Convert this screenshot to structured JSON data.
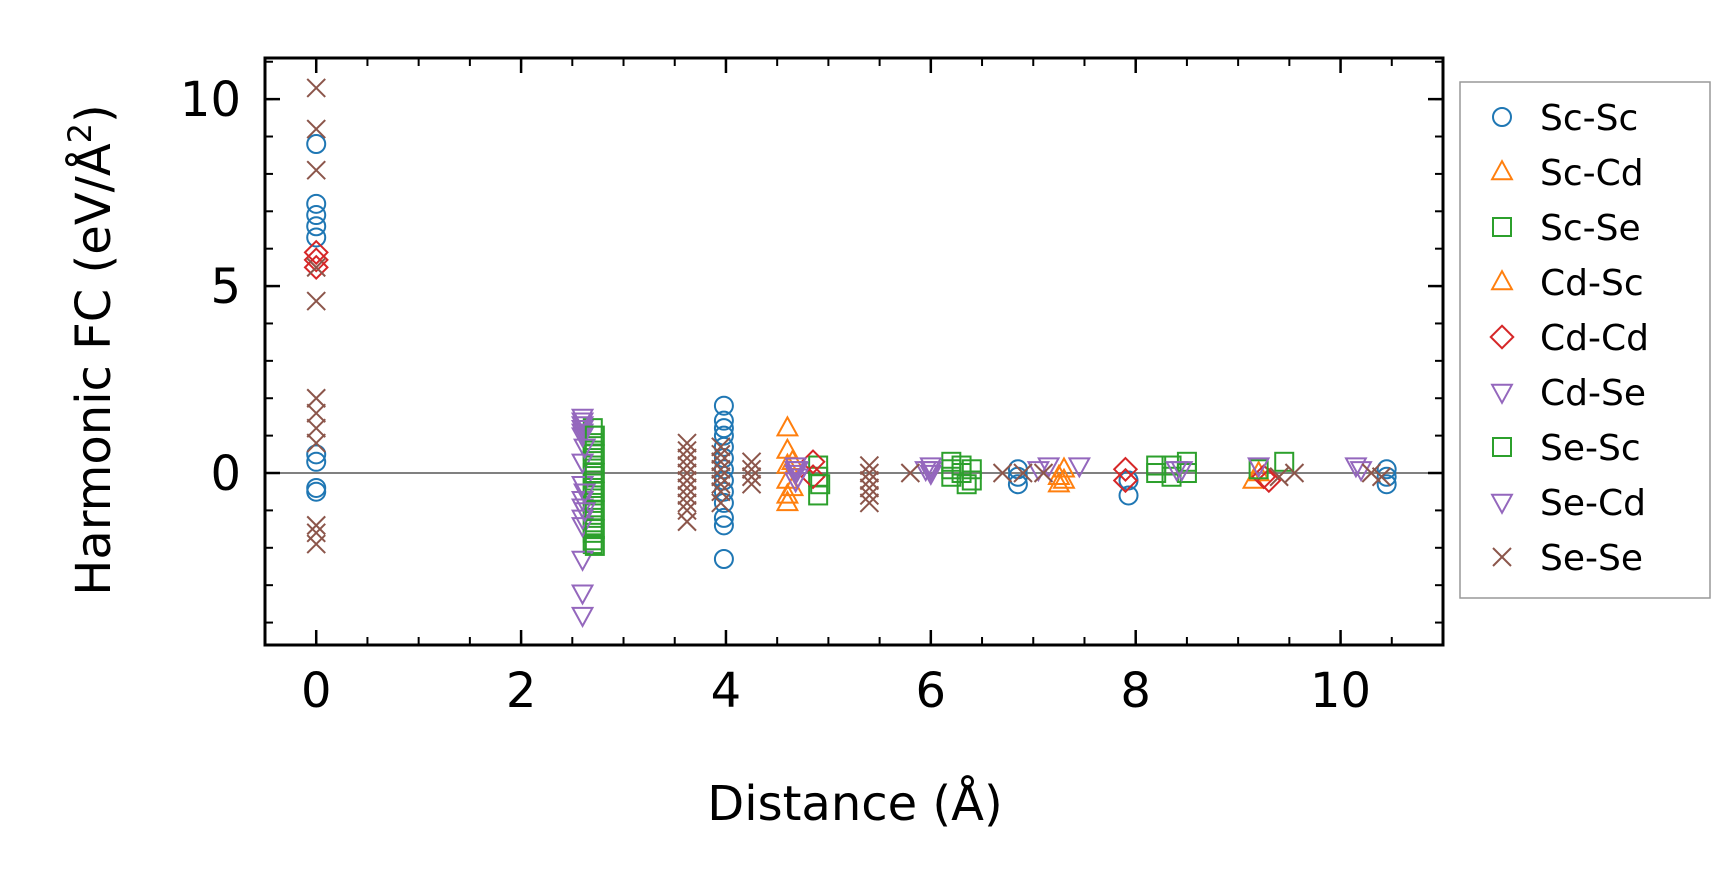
{
  "chart_data": {
    "type": "scatter",
    "xlabel": "Distance (Å)",
    "ylabel_main": "Harmonic FC (eV/Å",
    "ylabel_sup": "2",
    "ylabel_close": ")",
    "xlim": [
      -0.5,
      11.0
    ],
    "ylim": [
      -4.6,
      11.1
    ],
    "xticks": [
      0,
      2,
      4,
      6,
      8,
      10
    ],
    "yticks": [
      0,
      5,
      10
    ],
    "xtick_labels": [
      "0",
      "2",
      "4",
      "6",
      "8",
      "10"
    ],
    "ytick_labels": [
      "0",
      "5",
      "10"
    ],
    "x_minor_step": 0.5,
    "y_minor_step": 1,
    "zero_line": true,
    "grid": false,
    "legend_position": "outside-right",
    "series": [
      {
        "name": "Sc-Sc",
        "marker": "circle",
        "color": "#1f77b4",
        "points": [
          [
            0,
            8.8
          ],
          [
            0,
            7.2
          ],
          [
            0,
            6.9
          ],
          [
            0,
            6.6
          ],
          [
            0,
            6.3
          ],
          [
            0,
            0.5
          ],
          [
            0,
            0.3
          ],
          [
            0,
            -0.4
          ],
          [
            0,
            -0.5
          ],
          [
            3.98,
            1.8
          ],
          [
            3.98,
            1.4
          ],
          [
            3.98,
            1.2
          ],
          [
            3.98,
            1.0
          ],
          [
            3.98,
            0.7
          ],
          [
            3.98,
            0.4
          ],
          [
            3.98,
            0.1
          ],
          [
            3.98,
            -0.2
          ],
          [
            3.98,
            -0.5
          ],
          [
            3.98,
            -0.8
          ],
          [
            3.98,
            -1.2
          ],
          [
            3.98,
            -1.4
          ],
          [
            3.98,
            -2.3
          ],
          [
            6.85,
            0.1
          ],
          [
            6.85,
            -0.1
          ],
          [
            6.85,
            -0.3
          ],
          [
            7.93,
            -0.6
          ],
          [
            7.93,
            -0.2
          ],
          [
            10.45,
            0.1
          ],
          [
            10.45,
            -0.1
          ],
          [
            10.45,
            -0.3
          ]
        ]
      },
      {
        "name": "Sc-Cd",
        "marker": "triangle-up",
        "color": "#ff7f0e",
        "points": [
          [
            4.6,
            1.2
          ],
          [
            4.6,
            0.6
          ],
          [
            4.6,
            0.2
          ],
          [
            4.6,
            -0.2
          ],
          [
            4.6,
            -0.6
          ],
          [
            4.6,
            -0.8
          ],
          [
            7.25,
            -0.1
          ],
          [
            7.25,
            -0.3
          ],
          [
            9.15,
            -0.2
          ]
        ]
      },
      {
        "name": "Sc-Se",
        "marker": "square",
        "color": "#2ca02c",
        "points": [
          [
            2.7,
            1.2
          ],
          [
            2.7,
            1.0
          ],
          [
            2.7,
            0.8
          ],
          [
            2.7,
            0.6
          ],
          [
            2.7,
            0.4
          ],
          [
            2.7,
            0.2
          ],
          [
            2.7,
            0.0
          ],
          [
            2.7,
            -0.2
          ],
          [
            2.7,
            -0.4
          ],
          [
            2.7,
            -0.6
          ],
          [
            2.7,
            -0.8
          ],
          [
            2.7,
            -1.0
          ],
          [
            2.7,
            -1.2
          ],
          [
            2.7,
            -1.4
          ],
          [
            2.7,
            -1.6
          ],
          [
            2.7,
            -1.8
          ],
          [
            2.7,
            -1.9
          ],
          [
            4.9,
            0.2
          ],
          [
            4.9,
            -0.1
          ],
          [
            4.9,
            -0.6
          ],
          [
            6.2,
            0.3
          ],
          [
            6.2,
            0.1
          ],
          [
            6.2,
            -0.1
          ],
          [
            6.3,
            0.2
          ],
          [
            6.3,
            0.0
          ],
          [
            6.4,
            0.1
          ],
          [
            6.4,
            -0.2
          ],
          [
            8.2,
            0.2
          ],
          [
            8.2,
            0.0
          ],
          [
            8.35,
            0.2
          ],
          [
            8.35,
            -0.1
          ],
          [
            8.5,
            0.3
          ],
          [
            8.5,
            0.0
          ],
          [
            9.45,
            0.3
          ]
        ]
      },
      {
        "name": "Cd-Sc",
        "marker": "triangle-up",
        "color": "#ff7f0e",
        "points": [
          [
            4.65,
            0.3
          ],
          [
            4.65,
            -0.4
          ],
          [
            7.3,
            0.1
          ],
          [
            7.3,
            -0.2
          ],
          [
            9.2,
            0.0
          ]
        ]
      },
      {
        "name": "Cd-Cd",
        "marker": "diamond",
        "color": "#d62728",
        "points": [
          [
            0,
            5.9
          ],
          [
            0,
            5.7
          ],
          [
            0,
            5.5
          ],
          [
            4.85,
            0.3
          ],
          [
            4.85,
            -0.1
          ],
          [
            7.9,
            0.1
          ],
          [
            7.9,
            -0.2
          ],
          [
            9.25,
            -0.1
          ],
          [
            9.3,
            -0.2
          ]
        ]
      },
      {
        "name": "Cd-Se",
        "marker": "triangle-down",
        "color": "#9467bd",
        "points": [
          [
            2.6,
            1.5
          ],
          [
            2.6,
            1.4
          ],
          [
            2.6,
            1.3
          ],
          [
            2.6,
            1.2
          ],
          [
            2.6,
            1.1
          ],
          [
            2.6,
            1.0
          ],
          [
            2.6,
            0.3
          ],
          [
            2.6,
            -0.3
          ],
          [
            2.6,
            -0.7
          ],
          [
            2.6,
            -0.9
          ],
          [
            2.6,
            -1.2
          ],
          [
            2.6,
            -1.4
          ],
          [
            2.6,
            -2.3
          ],
          [
            2.6,
            -3.2
          ],
          [
            2.6,
            -3.8
          ],
          [
            4.68,
            0.2
          ],
          [
            4.68,
            0.1
          ],
          [
            4.68,
            0.0
          ],
          [
            4.68,
            -0.2
          ],
          [
            6.0,
            0.2
          ],
          [
            6.0,
            0.1
          ],
          [
            6.0,
            0.0
          ],
          [
            7.15,
            0.2
          ],
          [
            7.45,
            0.2
          ],
          [
            8.4,
            0.1
          ],
          [
            10.15,
            0.2
          ]
        ]
      },
      {
        "name": "Se-Sc",
        "marker": "square",
        "color": "#2ca02c",
        "points": [
          [
            2.72,
            1.0
          ],
          [
            2.72,
            0.5
          ],
          [
            2.72,
            0.0
          ],
          [
            2.72,
            -0.5
          ],
          [
            2.72,
            -1.0
          ],
          [
            2.72,
            -1.5
          ],
          [
            2.72,
            -1.95
          ],
          [
            4.92,
            -0.3
          ],
          [
            6.35,
            -0.3
          ],
          [
            9.2,
            0.1
          ]
        ]
      },
      {
        "name": "Se-Cd",
        "marker": "triangle-down",
        "color": "#9467bd",
        "points": [
          [
            2.62,
            0.7
          ],
          [
            2.62,
            -0.5
          ],
          [
            2.62,
            -1.0
          ],
          [
            4.7,
            0.1
          ],
          [
            4.7,
            -0.1
          ],
          [
            5.95,
            0.1
          ],
          [
            7.05,
            0.1
          ],
          [
            8.45,
            0.1
          ],
          [
            9.2,
            0.2
          ],
          [
            10.2,
            0.1
          ]
        ]
      },
      {
        "name": "Se-Se",
        "marker": "x",
        "color": "#8c564b",
        "points": [
          [
            0,
            10.3
          ],
          [
            0,
            9.2
          ],
          [
            0,
            8.1
          ],
          [
            0,
            5.5
          ],
          [
            0,
            4.6
          ],
          [
            0,
            2.0
          ],
          [
            0,
            1.6
          ],
          [
            0,
            1.2
          ],
          [
            0,
            0.8
          ],
          [
            0,
            -1.4
          ],
          [
            0,
            -1.6
          ],
          [
            0,
            -1.9
          ],
          [
            3.62,
            0.8
          ],
          [
            3.62,
            0.6
          ],
          [
            3.62,
            0.4
          ],
          [
            3.62,
            0.2
          ],
          [
            3.62,
            0.0
          ],
          [
            3.62,
            -0.2
          ],
          [
            3.62,
            -0.4
          ],
          [
            3.62,
            -0.6
          ],
          [
            3.62,
            -0.8
          ],
          [
            3.62,
            -1.0
          ],
          [
            3.62,
            -1.3
          ],
          [
            3.95,
            0.7
          ],
          [
            3.95,
            0.5
          ],
          [
            3.95,
            0.3
          ],
          [
            3.95,
            0.1
          ],
          [
            3.95,
            -0.1
          ],
          [
            3.95,
            -0.3
          ],
          [
            3.95,
            -0.5
          ],
          [
            3.95,
            -0.8
          ],
          [
            4.25,
            0.3
          ],
          [
            4.25,
            0.1
          ],
          [
            4.25,
            -0.1
          ],
          [
            4.25,
            -0.3
          ],
          [
            5.4,
            0.2
          ],
          [
            5.4,
            0.0
          ],
          [
            5.4,
            -0.2
          ],
          [
            5.4,
            -0.4
          ],
          [
            5.4,
            -0.6
          ],
          [
            5.4,
            -0.8
          ],
          [
            5.8,
            0.0
          ],
          [
            6.7,
            0.0
          ],
          [
            6.9,
            0.0
          ],
          [
            7.1,
            0.0
          ],
          [
            9.4,
            -0.1
          ],
          [
            9.55,
            0.0
          ],
          [
            10.3,
            0.0
          ],
          [
            10.4,
            -0.1
          ]
        ]
      }
    ]
  }
}
